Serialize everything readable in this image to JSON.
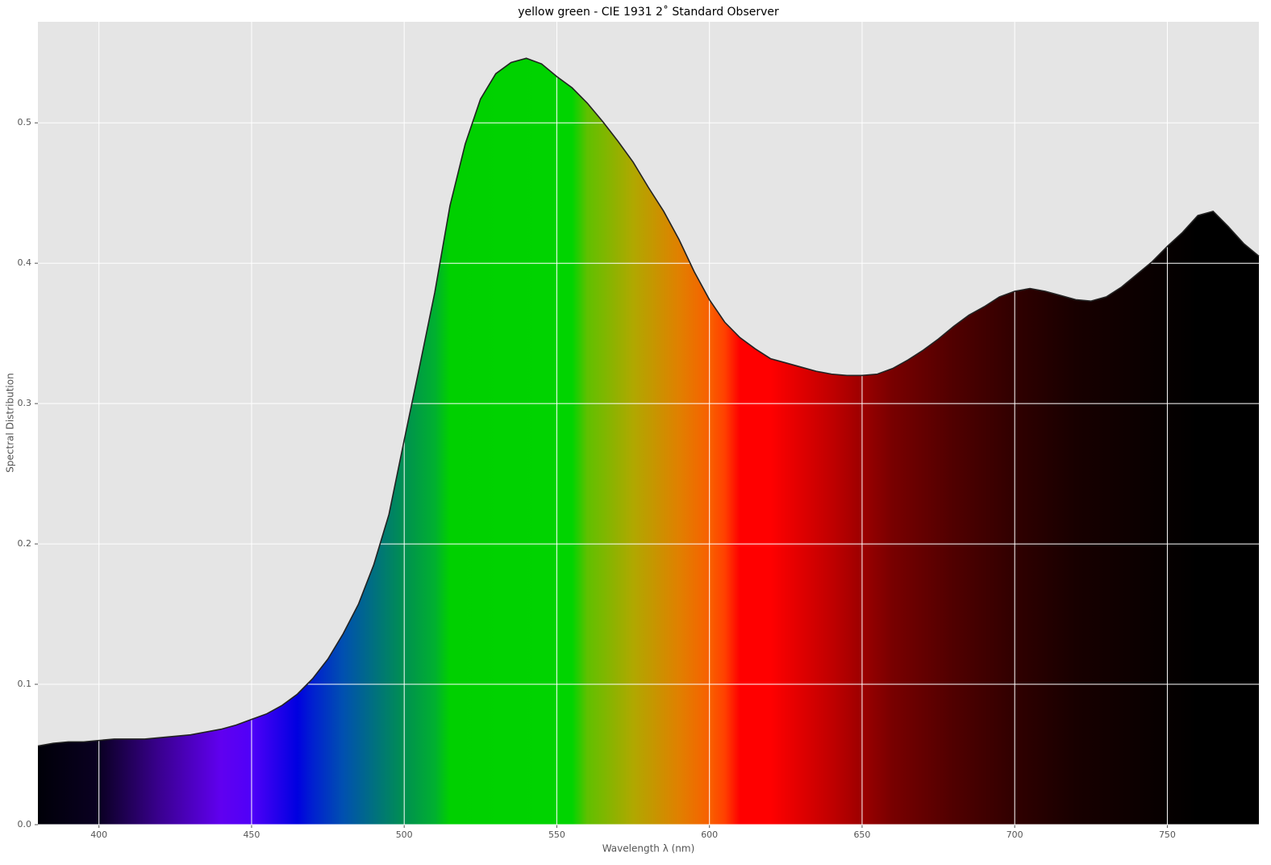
{
  "chart_data": {
    "type": "area",
    "title": "yellow green - CIE 1931 2˚ Standard Observer",
    "xlabel": "Wavelength λ (nm)",
    "ylabel": "Spectral Distribution",
    "x": [
      380,
      385,
      390,
      395,
      400,
      405,
      410,
      415,
      420,
      425,
      430,
      435,
      440,
      445,
      450,
      455,
      460,
      465,
      470,
      475,
      480,
      485,
      490,
      495,
      500,
      505,
      510,
      515,
      520,
      525,
      530,
      535,
      540,
      545,
      550,
      555,
      560,
      565,
      570,
      575,
      580,
      585,
      590,
      595,
      600,
      605,
      610,
      615,
      620,
      625,
      630,
      635,
      640,
      645,
      650,
      655,
      660,
      665,
      670,
      675,
      680,
      685,
      690,
      695,
      700,
      705,
      710,
      715,
      720,
      725,
      730,
      735,
      740,
      745,
      750,
      755,
      760,
      765,
      770,
      775,
      780
    ],
    "values": [
      0.056,
      0.058,
      0.059,
      0.059,
      0.06,
      0.061,
      0.061,
      0.061,
      0.062,
      0.063,
      0.064,
      0.066,
      0.068,
      0.071,
      0.075,
      0.079,
      0.085,
      0.093,
      0.104,
      0.118,
      0.136,
      0.157,
      0.185,
      0.221,
      0.274,
      0.326,
      0.379,
      0.441,
      0.485,
      0.517,
      0.535,
      0.543,
      0.546,
      0.542,
      0.533,
      0.525,
      0.514,
      0.501,
      0.487,
      0.472,
      0.454,
      0.437,
      0.417,
      0.394,
      0.374,
      0.358,
      0.347,
      0.339,
      0.332,
      0.329,
      0.326,
      0.323,
      0.321,
      0.32,
      0.32,
      0.321,
      0.325,
      0.331,
      0.338,
      0.346,
      0.355,
      0.363,
      0.369,
      0.376,
      0.38,
      0.382,
      0.38,
      0.377,
      0.374,
      0.373,
      0.376,
      0.383,
      0.392,
      0.401,
      0.412,
      0.422,
      0.434,
      0.437,
      0.426,
      0.414,
      0.405
    ],
    "xlim": [
      380,
      780
    ],
    "ylim": [
      0,
      0.572
    ],
    "xticks": [
      400,
      450,
      500,
      550,
      600,
      650,
      700,
      750
    ],
    "yticks": [
      {
        "value": 0,
        "label": "0.0"
      },
      0.1,
      0.2,
      0.3,
      0.4,
      0.5
    ],
    "grid": true,
    "line_color": "#222222"
  }
}
